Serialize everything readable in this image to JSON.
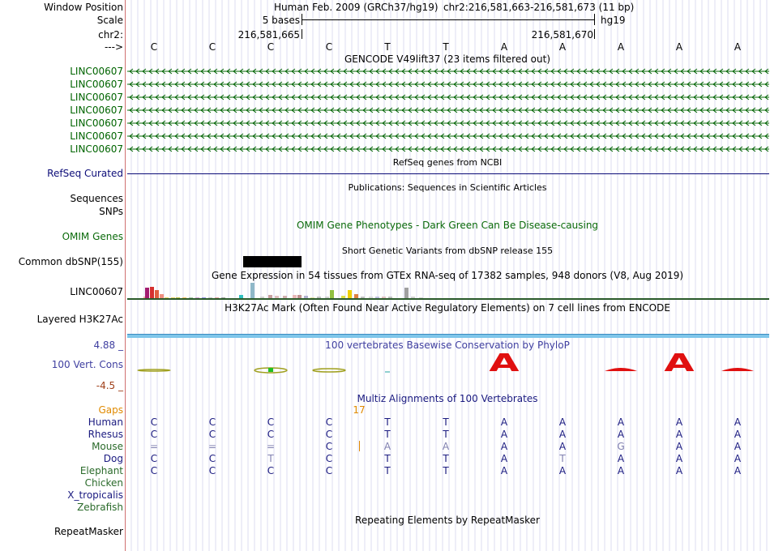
{
  "header": {
    "window_position_label": "Window Position",
    "assembly": "Human Feb. 2009 (GRCh37/hg19)",
    "position": "chr2:216,581,663-216,581,673 (11 bp)",
    "scale_label": "Scale",
    "scale_text": "5 bases",
    "scale_db": "hg19",
    "chrom_label": "chr2:",
    "coord_left": "216,581,665",
    "coord_right": "216,581,670",
    "strand_label": "--->"
  },
  "bases": [
    "C",
    "C",
    "C",
    "C",
    "T",
    "T",
    "A",
    "A",
    "A",
    "A",
    "A"
  ],
  "tracks": {
    "gencode_title": "GENCODE V49lift37 (23 items filtered out)",
    "gencode_items": [
      "LINC00607",
      "LINC00607",
      "LINC00607",
      "LINC00607",
      "LINC00607",
      "LINC00607",
      "LINC00607"
    ],
    "refseq_label": "RefSeq Curated",
    "refseq_title": "RefSeq genes from NCBI",
    "pubs_title": "Publications: Sequences in Scientific Articles",
    "sequences_label": "Sequences",
    "snps_label": "SNPs",
    "omim_title": "OMIM Gene Phenotypes - Dark Green Can Be Disease-causing",
    "omim_label": "OMIM Genes",
    "dbsnp_title": "Short Genetic Variants from dbSNP release 155",
    "dbsnp_label": "Common dbSNP(155)",
    "gtex_title": "Gene Expression in 54 tissues from GTEx RNA-seq of 17382 samples, 948 donors (V8, Aug 2019)",
    "gtex_label": "LINC00607",
    "h3k_title": "H3K27Ac Mark (Often Found Near Active Regulatory Elements) on 7 cell lines from ENCODE",
    "h3k_label": "Layered H3K27Ac",
    "phylop_title": "100 vertebrates Basewise Conservation by PhyloP",
    "phylop_label": "100 Vert. Cons",
    "phylop_max": "4.88 _",
    "phylop_min": "-4.5 _",
    "phylop_letter": "A",
    "multiz_title": "Multiz Alignments of 100 Vertebrates",
    "gaps_label": "Gaps",
    "gaps_value": "17",
    "repeat_title": "Repeating Elements by RepeatMasker",
    "repeat_label": "RepeatMasker"
  },
  "species": [
    {
      "name": "Human",
      "row": [
        "C",
        "C",
        "C",
        "C",
        "T",
        "T",
        "A",
        "A",
        "A",
        "A",
        "A"
      ]
    },
    {
      "name": "Rhesus",
      "row": [
        "C",
        "C",
        "C",
        "C",
        "T",
        "T",
        "A",
        "A",
        "A",
        "A",
        "A"
      ]
    },
    {
      "name": "Mouse",
      "row": [
        "=",
        "=",
        "=",
        "C",
        "A",
        "A",
        "A",
        "A",
        "G",
        "A",
        "A"
      ]
    },
    {
      "name": "Dog",
      "row": [
        "C",
        "C",
        "T",
        "C",
        "T",
        "T",
        "A",
        "T",
        "A",
        "A",
        "A"
      ]
    },
    {
      "name": "Elephant",
      "row": [
        "C",
        "C",
        "C",
        "C",
        "T",
        "T",
        "A",
        "A",
        "A",
        "A",
        "A"
      ]
    },
    {
      "name": "Chicken",
      "row": []
    },
    {
      "name": "X_tropicalis",
      "row": []
    },
    {
      "name": "Zebrafish",
      "row": []
    }
  ],
  "colors": {
    "gencode": "#006400",
    "refseq": "#0c0c78",
    "omim": "#0a6a0a",
    "gaps": "#e08a00",
    "phylop_pos": "#3f3fa0",
    "phylop_neg": "#a0401a",
    "conserved": "#1a1a80",
    "unconserved": "#8080b0"
  }
}
